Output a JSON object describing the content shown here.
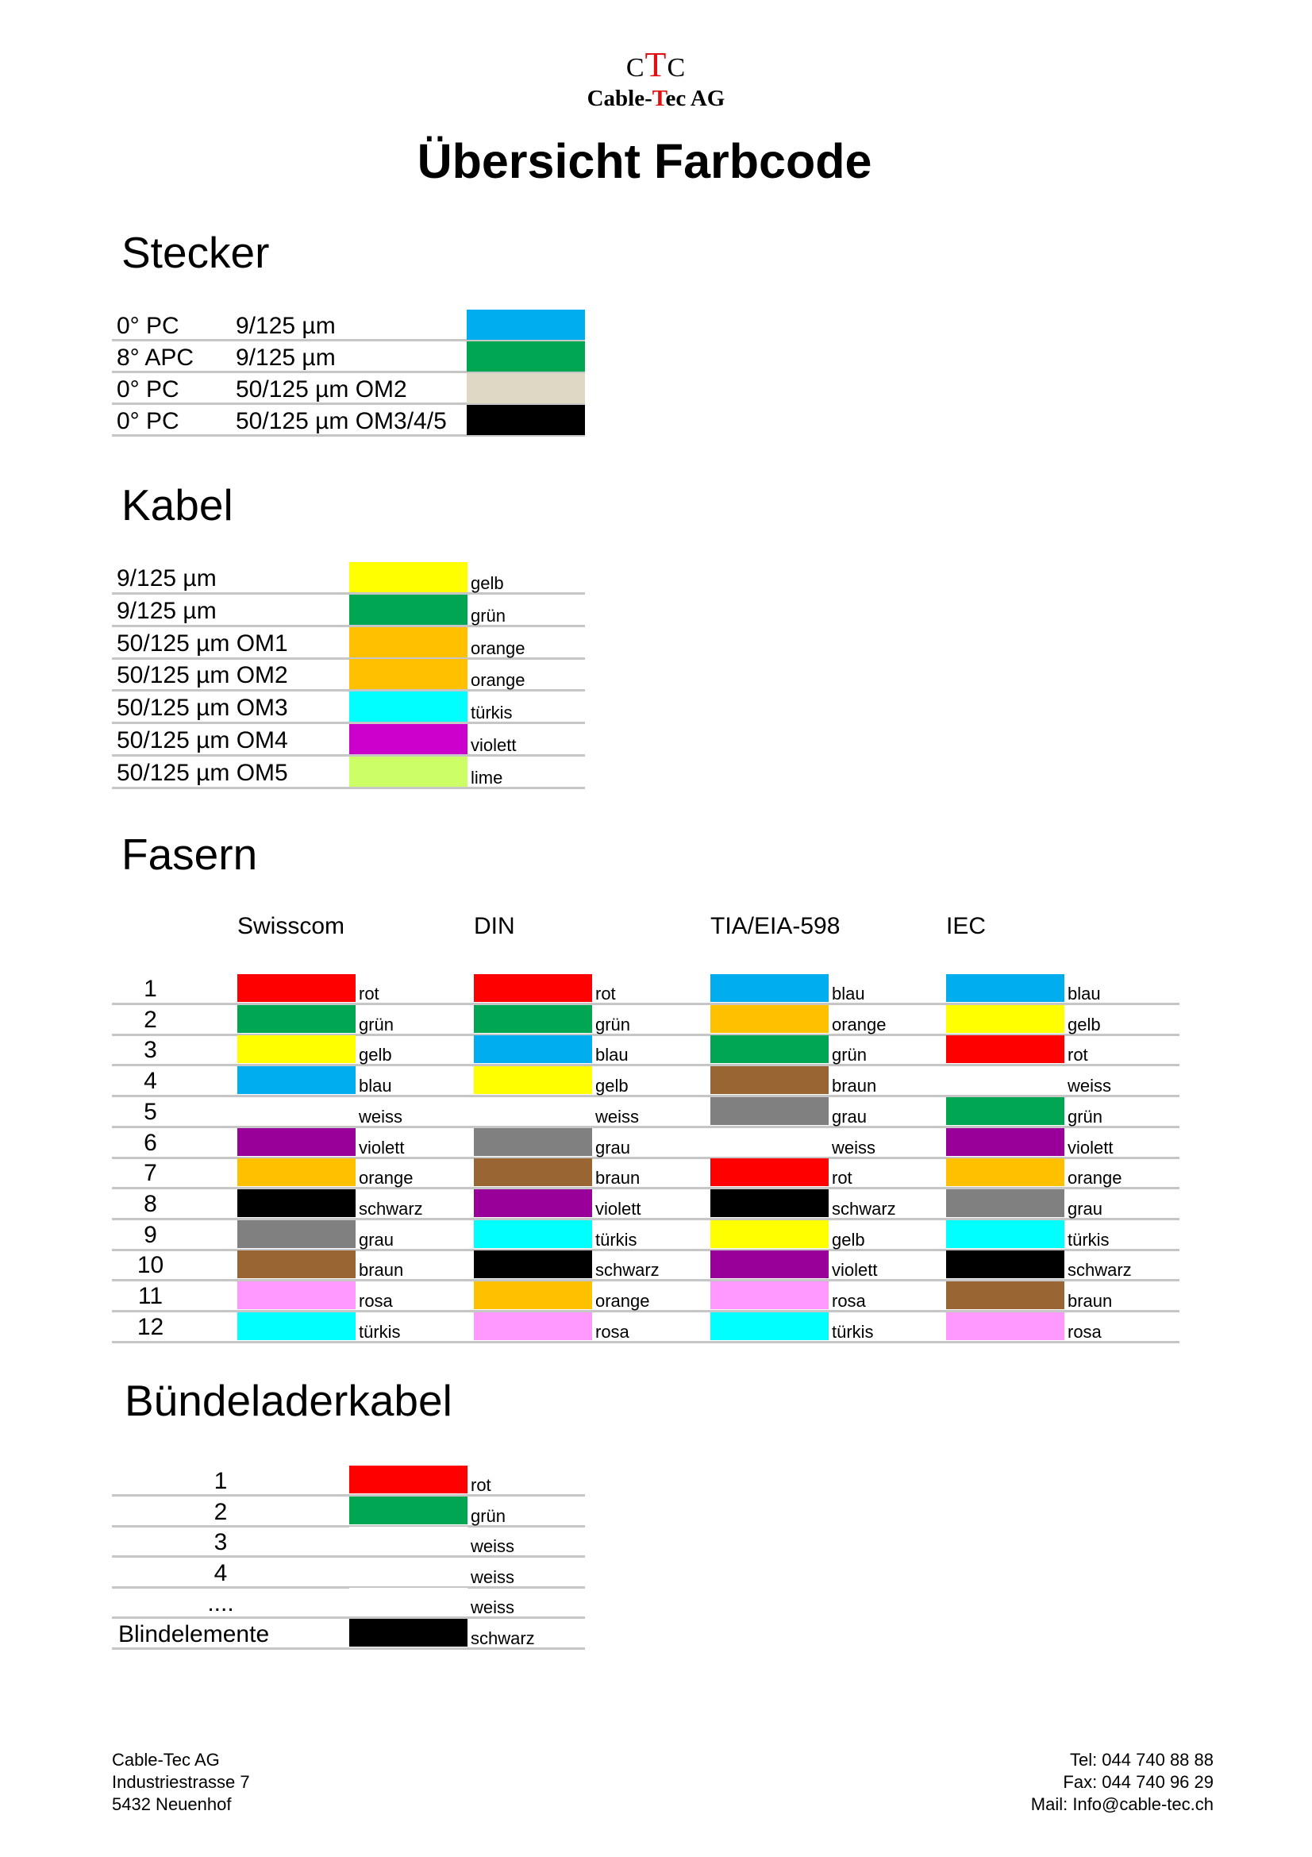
{
  "logo": {
    "c1": "C",
    "t": "T",
    "c2": "C",
    "name_a": "Cable-",
    "name_t": "T",
    "name_b": "ec AG"
  },
  "title": "Übersicht Farbcode",
  "stecker": {
    "heading": "Stecker",
    "rows": [
      {
        "type": "0° PC",
        "fiber": "9/125 µm",
        "color": "#00aeef"
      },
      {
        "type": "8° APC",
        "fiber": "9/125 µm",
        "color": "#00a651"
      },
      {
        "type": "0° PC",
        "fiber": "50/125 µm OM2",
        "color": "#ddd9c4"
      },
      {
        "type": "0° PC",
        "fiber": "50/125 µm OM3/4/5",
        "color": "#000000"
      }
    ]
  },
  "kabel": {
    "heading": "Kabel",
    "rows": [
      {
        "fiber": "9/125 µm",
        "color": "#ffff00",
        "name": "gelb"
      },
      {
        "fiber": "9/125 µm",
        "color": "#00a651",
        "name": "grün"
      },
      {
        "fiber": "50/125 µm OM1",
        "color": "#ffc000",
        "name": "orange"
      },
      {
        "fiber": "50/125 µm OM2",
        "color": "#ffc000",
        "name": "orange"
      },
      {
        "fiber": "50/125 µm OM3",
        "color": "#00ffff",
        "name": "türkis"
      },
      {
        "fiber": "50/125 µm OM4",
        "color": "#cc00cc",
        "name": "violett"
      },
      {
        "fiber": "50/125 µm OM5",
        "color": "#ccff66",
        "name": "lime"
      }
    ]
  },
  "fasern": {
    "heading": "Fasern",
    "standards": [
      "Swisscom",
      "DIN",
      "TIA/EIA-598",
      "IEC"
    ],
    "rows": [
      {
        "num": "1",
        "cells": [
          {
            "color": "#ff0000",
            "name": "rot"
          },
          {
            "color": "#ff0000",
            "name": "rot"
          },
          {
            "color": "#00aeef",
            "name": "blau"
          },
          {
            "color": "#00aeef",
            "name": "blau"
          }
        ]
      },
      {
        "num": "2",
        "cells": [
          {
            "color": "#00a651",
            "name": "grün"
          },
          {
            "color": "#00a651",
            "name": "grün"
          },
          {
            "color": "#ffc000",
            "name": "orange"
          },
          {
            "color": "#ffff00",
            "name": "gelb"
          }
        ]
      },
      {
        "num": "3",
        "cells": [
          {
            "color": "#ffff00",
            "name": "gelb"
          },
          {
            "color": "#00aeef",
            "name": "blau"
          },
          {
            "color": "#00a651",
            "name": "grün"
          },
          {
            "color": "#ff0000",
            "name": "rot"
          }
        ]
      },
      {
        "num": "4",
        "cells": [
          {
            "color": "#00aeef",
            "name": "blau"
          },
          {
            "color": "#ffff00",
            "name": "gelb"
          },
          {
            "color": "#996633",
            "name": "braun"
          },
          {
            "color": "#ffffff",
            "name": "weiss"
          }
        ]
      },
      {
        "num": "5",
        "cells": [
          {
            "color": "#ffffff",
            "name": "weiss"
          },
          {
            "color": "#ffffff",
            "name": "weiss"
          },
          {
            "color": "#808080",
            "name": "grau"
          },
          {
            "color": "#00a651",
            "name": "grün"
          }
        ]
      },
      {
        "num": "6",
        "cells": [
          {
            "color": "#990099",
            "name": "violett"
          },
          {
            "color": "#808080",
            "name": "grau"
          },
          {
            "color": "#ffffff",
            "name": "weiss"
          },
          {
            "color": "#990099",
            "name": "violett"
          }
        ]
      },
      {
        "num": "7",
        "cells": [
          {
            "color": "#ffc000",
            "name": "orange"
          },
          {
            "color": "#996633",
            "name": "braun"
          },
          {
            "color": "#ff0000",
            "name": "rot"
          },
          {
            "color": "#ffc000",
            "name": "orange"
          }
        ]
      },
      {
        "num": "8",
        "cells": [
          {
            "color": "#000000",
            "name": "schwarz"
          },
          {
            "color": "#990099",
            "name": "violett"
          },
          {
            "color": "#000000",
            "name": "schwarz"
          },
          {
            "color": "#808080",
            "name": "grau"
          }
        ]
      },
      {
        "num": "9",
        "cells": [
          {
            "color": "#808080",
            "name": "grau"
          },
          {
            "color": "#00ffff",
            "name": "türkis"
          },
          {
            "color": "#ffff00",
            "name": "gelb"
          },
          {
            "color": "#00ffff",
            "name": "türkis"
          }
        ]
      },
      {
        "num": "10",
        "cells": [
          {
            "color": "#996633",
            "name": "braun"
          },
          {
            "color": "#000000",
            "name": "schwarz"
          },
          {
            "color": "#990099",
            "name": "violett"
          },
          {
            "color": "#000000",
            "name": "schwarz"
          }
        ]
      },
      {
        "num": "11",
        "cells": [
          {
            "color": "#ff99ff",
            "name": "rosa"
          },
          {
            "color": "#ffc000",
            "name": "orange"
          },
          {
            "color": "#ff99ff",
            "name": "rosa"
          },
          {
            "color": "#996633",
            "name": "braun"
          }
        ]
      },
      {
        "num": "12",
        "cells": [
          {
            "color": "#00ffff",
            "name": "türkis"
          },
          {
            "color": "#ff99ff",
            "name": "rosa"
          },
          {
            "color": "#00ffff",
            "name": "türkis"
          },
          {
            "color": "#ff99ff",
            "name": "rosa"
          }
        ]
      }
    ]
  },
  "buendel": {
    "heading": "Bündeladerkabel",
    "rows": [
      {
        "label": "1",
        "color": "#ff0000",
        "name": "rot"
      },
      {
        "label": "2",
        "color": "#00a651",
        "name": "grün"
      },
      {
        "label": "3",
        "color": "#ffffff",
        "name": "weiss"
      },
      {
        "label": "4",
        "color": "#ffffff",
        "name": "weiss"
      },
      {
        "label": "....",
        "color": "#ffffff",
        "name": "weiss"
      },
      {
        "label": "Blindelemente",
        "color": "#000000",
        "name": "schwarz"
      }
    ]
  },
  "footer": {
    "left": [
      "Cable-Tec AG",
      "Industriestrasse 7",
      "5432 Neuenhof"
    ],
    "right": [
      "Tel: 044 740 88 88",
      "Fax: 044 740 96 29",
      "Mail: Info@cable-tec.ch"
    ]
  }
}
